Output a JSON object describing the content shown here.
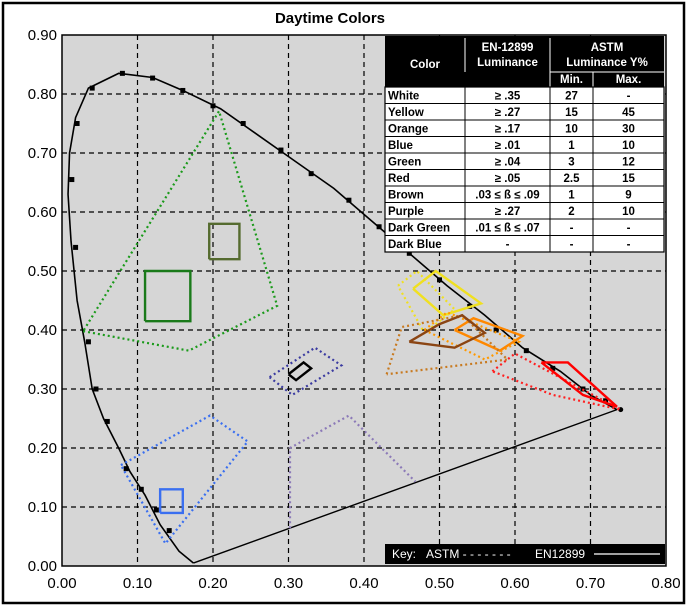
{
  "chart_data": {
    "type": "scatter",
    "title": "Daytime Colors",
    "xlim": [
      0.0,
      0.8
    ],
    "ylim": [
      0.0,
      0.9
    ],
    "x_ticks": [
      "0.00",
      "0.10",
      "0.20",
      "0.30",
      "0.40",
      "0.50",
      "0.60",
      "0.70",
      "0.80"
    ],
    "y_ticks": [
      "0.00",
      "0.10",
      "0.20",
      "0.30",
      "0.40",
      "0.50",
      "0.60",
      "0.70",
      "0.80",
      "0.90"
    ],
    "grid": true,
    "spectral_locus": [
      [
        0.174,
        0.005
      ],
      [
        0.155,
        0.025
      ],
      [
        0.13,
        0.07
      ],
      [
        0.11,
        0.12
      ],
      [
        0.09,
        0.16
      ],
      [
        0.075,
        0.2
      ],
      [
        0.055,
        0.25
      ],
      [
        0.04,
        0.3
      ],
      [
        0.03,
        0.38
      ],
      [
        0.02,
        0.45
      ],
      [
        0.012,
        0.55
      ],
      [
        0.008,
        0.63
      ],
      [
        0.01,
        0.7
      ],
      [
        0.018,
        0.76
      ],
      [
        0.035,
        0.81
      ],
      [
        0.075,
        0.835
      ],
      [
        0.12,
        0.828
      ],
      [
        0.16,
        0.806
      ],
      [
        0.21,
        0.775
      ],
      [
        0.26,
        0.73
      ],
      [
        0.31,
        0.685
      ],
      [
        0.36,
        0.64
      ],
      [
        0.41,
        0.585
      ],
      [
        0.46,
        0.53
      ],
      [
        0.51,
        0.475
      ],
      [
        0.56,
        0.425
      ],
      [
        0.61,
        0.37
      ],
      [
        0.66,
        0.33
      ],
      [
        0.7,
        0.29
      ],
      [
        0.735,
        0.265
      ]
    ],
    "purple_line": [
      [
        0.174,
        0.005
      ],
      [
        0.735,
        0.265
      ]
    ],
    "locus_ticks": [
      [
        0.013,
        0.655
      ],
      [
        0.018,
        0.54
      ],
      [
        0.02,
        0.75
      ],
      [
        0.04,
        0.81
      ],
      [
        0.08,
        0.835
      ],
      [
        0.12,
        0.827
      ],
      [
        0.16,
        0.806
      ],
      [
        0.2,
        0.78
      ],
      [
        0.24,
        0.75
      ],
      [
        0.29,
        0.705
      ],
      [
        0.33,
        0.665
      ],
      [
        0.38,
        0.62
      ],
      [
        0.42,
        0.575
      ],
      [
        0.46,
        0.53
      ],
      [
        0.5,
        0.485
      ],
      [
        0.54,
        0.44
      ],
      [
        0.575,
        0.4
      ],
      [
        0.615,
        0.365
      ],
      [
        0.65,
        0.335
      ],
      [
        0.69,
        0.3
      ],
      [
        0.72,
        0.28
      ],
      [
        0.06,
        0.245
      ],
      [
        0.045,
        0.3
      ],
      [
        0.035,
        0.38
      ],
      [
        0.085,
        0.165
      ],
      [
        0.105,
        0.13
      ],
      [
        0.125,
        0.095
      ],
      [
        0.142,
        0.06
      ]
    ],
    "series": [
      {
        "name": "Green ASTM",
        "color": "#1a9a1a",
        "style": "dotted",
        "points": [
          [
            0.028,
            0.398
          ],
          [
            0.168,
            0.365
          ],
          [
            0.285,
            0.441
          ],
          [
            0.208,
            0.771
          ],
          [
            0.028,
            0.398
          ]
        ]
      },
      {
        "name": "Green EN12899",
        "color": "#1a7a1a",
        "style": "solid",
        "points": [
          [
            0.11,
            0.415
          ],
          [
            0.17,
            0.415
          ],
          [
            0.17,
            0.5
          ],
          [
            0.11,
            0.5
          ],
          [
            0.11,
            0.415
          ]
        ]
      },
      {
        "name": "Brown EN12899",
        "color": "#556b2f",
        "style": "solid",
        "points": [
          [
            0.195,
            0.52
          ],
          [
            0.235,
            0.52
          ],
          [
            0.235,
            0.58
          ],
          [
            0.195,
            0.58
          ],
          [
            0.195,
            0.52
          ]
        ]
      },
      {
        "name": "Blue ASTM",
        "color": "#3a6ff0",
        "style": "dotted",
        "points": [
          [
            0.078,
            0.171
          ],
          [
            0.196,
            0.255
          ],
          [
            0.246,
            0.211
          ],
          [
            0.137,
            0.038
          ],
          [
            0.078,
            0.171
          ]
        ]
      },
      {
        "name": "Blue EN12899",
        "color": "#3a6ff0",
        "style": "solid",
        "points": [
          [
            0.13,
            0.09
          ],
          [
            0.16,
            0.09
          ],
          [
            0.16,
            0.13
          ],
          [
            0.13,
            0.13
          ],
          [
            0.13,
            0.09
          ]
        ]
      },
      {
        "name": "White ASTM",
        "color": "#3a3aa0",
        "style": "dotted",
        "points": [
          [
            0.275,
            0.32
          ],
          [
            0.335,
            0.37
          ],
          [
            0.37,
            0.34
          ],
          [
            0.305,
            0.29
          ],
          [
            0.275,
            0.32
          ]
        ]
      },
      {
        "name": "White EN12899",
        "color": "#000000",
        "style": "solid",
        "points": [
          [
            0.3,
            0.325
          ],
          [
            0.32,
            0.345
          ],
          [
            0.33,
            0.335
          ],
          [
            0.31,
            0.315
          ],
          [
            0.3,
            0.325
          ]
        ]
      },
      {
        "name": "Purple ASTM",
        "color": "#8c7ab8",
        "style": "dotted",
        "points": [
          [
            0.302,
            0.064
          ],
          [
            0.302,
            0.2
          ],
          [
            0.38,
            0.255
          ],
          [
            0.468,
            0.143
          ]
        ]
      },
      {
        "name": "Yellow ASTM",
        "color": "#f0e020",
        "style": "dotted",
        "points": [
          [
            0.445,
            0.475
          ],
          [
            0.47,
            0.5
          ],
          [
            0.52,
            0.435
          ],
          [
            0.48,
            0.395
          ],
          [
            0.445,
            0.475
          ]
        ]
      },
      {
        "name": "Yellow EN12899",
        "color": "#f0e020",
        "style": "solid",
        "points": [
          [
            0.465,
            0.47
          ],
          [
            0.495,
            0.5
          ],
          [
            0.555,
            0.445
          ],
          [
            0.505,
            0.425
          ],
          [
            0.465,
            0.47
          ]
        ]
      },
      {
        "name": "Orange ASTM",
        "color": "#ff9900",
        "style": "dotted",
        "points": [
          [
            0.48,
            0.4
          ],
          [
            0.51,
            0.43
          ],
          [
            0.605,
            0.38
          ],
          [
            0.56,
            0.35
          ],
          [
            0.48,
            0.4
          ]
        ]
      },
      {
        "name": "Orange EN12899",
        "color": "#ff8800",
        "style": "solid",
        "points": [
          [
            0.52,
            0.4
          ],
          [
            0.545,
            0.42
          ],
          [
            0.61,
            0.39
          ],
          [
            0.58,
            0.365
          ],
          [
            0.52,
            0.4
          ]
        ]
      },
      {
        "name": "Brown ASTM",
        "color": "#c87a20",
        "style": "dotted",
        "points": [
          [
            0.43,
            0.325
          ],
          [
            0.45,
            0.405
          ],
          [
            0.53,
            0.425
          ],
          [
            0.59,
            0.35
          ],
          [
            0.43,
            0.325
          ]
        ]
      },
      {
        "name": "Brown EN12899 outline",
        "color": "#8b4513",
        "style": "solid",
        "points": [
          [
            0.46,
            0.38
          ],
          [
            0.5,
            0.41
          ],
          [
            0.53,
            0.425
          ],
          [
            0.56,
            0.395
          ],
          [
            0.52,
            0.37
          ],
          [
            0.46,
            0.38
          ]
        ]
      },
      {
        "name": "Red ASTM",
        "color": "#ff2020",
        "style": "dotted",
        "points": [
          [
            0.57,
            0.33
          ],
          [
            0.6,
            0.36
          ],
          [
            0.74,
            0.265
          ],
          [
            0.65,
            0.29
          ],
          [
            0.57,
            0.33
          ]
        ]
      },
      {
        "name": "Red EN12899",
        "color": "#ff0000",
        "style": "solid",
        "points": [
          [
            0.635,
            0.345
          ],
          [
            0.67,
            0.345
          ],
          [
            0.735,
            0.27
          ],
          [
            0.69,
            0.29
          ],
          [
            0.635,
            0.345
          ]
        ]
      }
    ],
    "table": {
      "header_row1": [
        "Color",
        "EN-12899",
        "ASTM"
      ],
      "header_row1b": [
        "",
        "Luminance",
        "Luminance Y%"
      ],
      "header_row2": [
        "Min.",
        "Max."
      ],
      "rows": [
        [
          "White",
          "≥ .35",
          "27",
          "-"
        ],
        [
          "Yellow",
          "≥ .27",
          "15",
          "45"
        ],
        [
          "Orange",
          "≥ .17",
          "10",
          "30"
        ],
        [
          "Blue",
          "≥ .01",
          "1",
          "10"
        ],
        [
          "Green",
          "≥ .04",
          "3",
          "12"
        ],
        [
          "Red",
          "≥ .05",
          "2.5",
          "15"
        ],
        [
          "Brown",
          ".03 ≤ ß ≤ .09",
          "1",
          "9"
        ],
        [
          "Purple",
          "≥ .27",
          "2",
          "10"
        ],
        [
          "Dark Green",
          ".01 ≤ ß ≤ .07",
          "-",
          "-"
        ],
        [
          "Dark Blue",
          "-",
          "-",
          "-"
        ]
      ]
    },
    "key": {
      "label": "Key:",
      "astm": "ASTM - - - - - - -",
      "en": "EN12899"
    }
  }
}
